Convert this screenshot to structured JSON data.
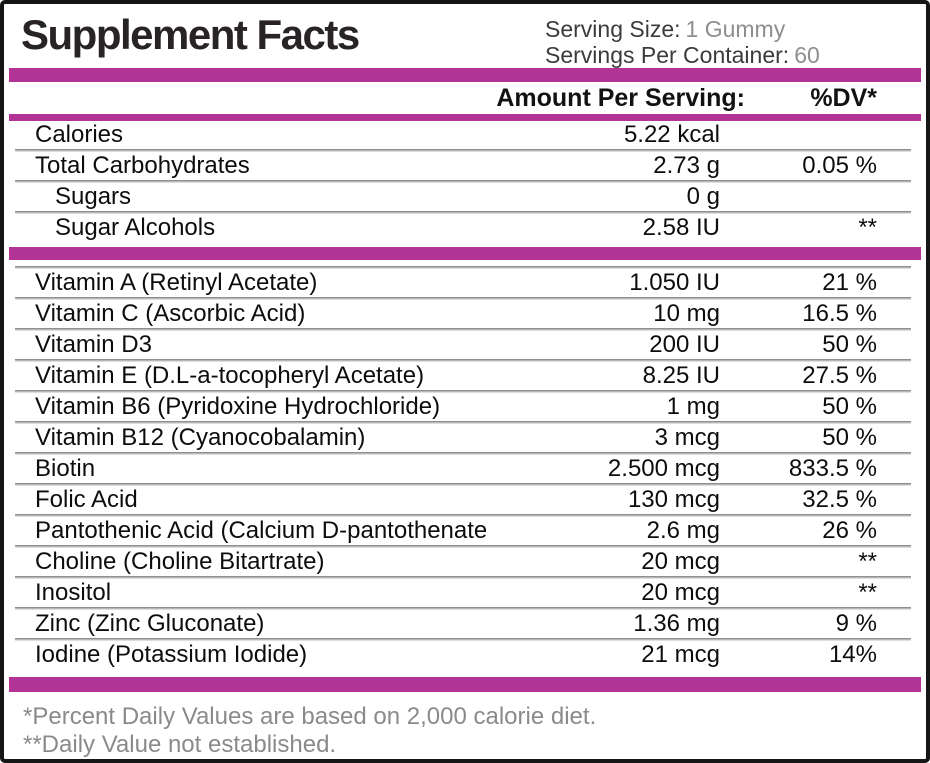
{
  "header": {
    "title": "Supplement Facts",
    "serving_size_label": "Serving Size:",
    "serving_size_value": "1 Gummy",
    "servings_per_container_label": "Servings Per Container:",
    "servings_per_container_value": "60"
  },
  "columns": {
    "amount_header": "Amount Per Serving:",
    "dv_header": "%DV*"
  },
  "sections": [
    {
      "divider_before_first": false,
      "rows": [
        {
          "name": "Calories",
          "amount": "5.22 kcal",
          "dv": "",
          "indent": false
        },
        {
          "name": "Total Carbohydrates",
          "amount": "2.73 g",
          "dv": "0.05 %",
          "indent": false
        },
        {
          "name": "Sugars",
          "amount": "0 g",
          "dv": "",
          "indent": true
        },
        {
          "name": "Sugar Alcohols",
          "amount": "2.58 IU",
          "dv": "**",
          "indent": true
        }
      ]
    },
    {
      "divider_before_first": true,
      "rows": [
        {
          "name": "Vitamin A (Retinyl Acetate)",
          "amount": "1.050 IU",
          "dv": "21 %",
          "indent": false
        },
        {
          "name": "Vitamin C (Ascorbic Acid)",
          "amount": "10 mg",
          "dv": "16.5 %",
          "indent": false
        },
        {
          "name": "Vitamin D3",
          "amount": "200 IU",
          "dv": "50 %",
          "indent": false
        },
        {
          "name": "Vitamin E (D.L-a-tocopheryl Acetate)",
          "amount": "8.25 IU",
          "dv": "27.5 %",
          "indent": false
        },
        {
          "name": "Vitamin B6 (Pyridoxine Hydrochloride)",
          "amount": "1 mg",
          "dv": "50 %",
          "indent": false
        },
        {
          "name": "Vitamin B12 (Cyanocobalamin)",
          "amount": "3 mcg",
          "dv": "50 %",
          "indent": false
        },
        {
          "name": "Biotin",
          "amount": "2.500 mcg",
          "dv": "833.5 %",
          "indent": false
        },
        {
          "name": "Folic Acid",
          "amount": "130 mcg",
          "dv": "32.5 %",
          "indent": false
        },
        {
          "name": "Pantothenic Acid (Calcium D-pantothenate)",
          "amount": "2.6 mg",
          "dv": "26 %",
          "indent": false
        },
        {
          "name": "Choline (Choline Bitartrate)",
          "amount": "20 mcg",
          "dv": "**",
          "indent": false
        },
        {
          "name": "Inositol",
          "amount": "20 mcg",
          "dv": "**",
          "indent": false
        },
        {
          "name": "Zinc (Zinc Gluconate)",
          "amount": "1.36 mg",
          "dv": "9 %",
          "indent": false
        },
        {
          "name": "Iodine (Potassium Iodide)",
          "amount": "21 mcg",
          "dv": "14%",
          "indent": false
        }
      ]
    }
  ],
  "footnotes": [
    "*Percent Daily Values are based on 2,000 calorie diet.",
    "**Daily Value not established."
  ],
  "colors": {
    "accent_bar": "#b23496",
    "muted_text": "#8a8a8a",
    "border": "#161616"
  }
}
